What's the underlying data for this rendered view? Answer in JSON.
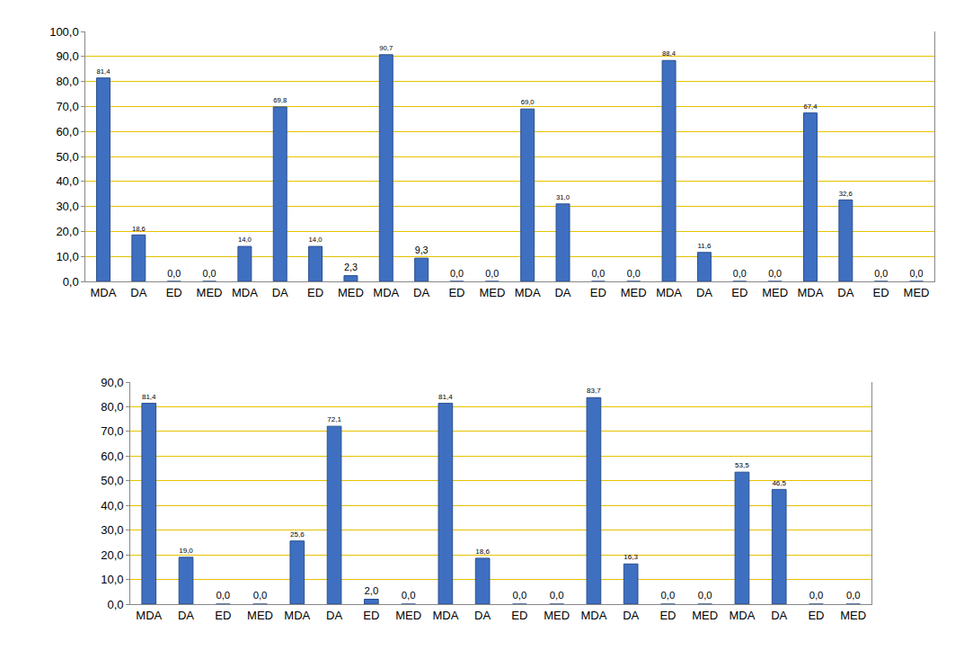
{
  "chart_data": [
    {
      "type": "bar",
      "categories": [
        "MDA",
        "DA",
        "ED",
        "MED",
        "MDA",
        "DA",
        "ED",
        "MED",
        "MDA",
        "DA",
        "ED",
        "MED",
        "MDA",
        "DA",
        "ED",
        "MED",
        "MDA",
        "DA",
        "ED",
        "MED",
        "MDA",
        "DA",
        "ED",
        "MED"
      ],
      "values": [
        81.4,
        18.6,
        0,
        0,
        14.0,
        69.8,
        14.0,
        2.3,
        90.7,
        9.3,
        0,
        0,
        69.0,
        31.0,
        0,
        0,
        88.4,
        11.6,
        0,
        0,
        67.4,
        32.6,
        0,
        0
      ],
      "value_labels": [
        "81,4",
        "18,6",
        "0,0",
        "0,0",
        "14,0",
        "69,8",
        "14,0",
        "2,3",
        "90,7",
        "9,3",
        "0,0",
        "0,0",
        "69,0",
        "31,0",
        "0,0",
        "0,0",
        "88,4",
        "11,6",
        "0,0",
        "0,0",
        "67,4",
        "32,6",
        "0,0",
        "0,0"
      ],
      "color": "#3f6fc0",
      "ylim": [
        0,
        100
      ],
      "yticks": [
        {
          "value": 0,
          "label": "0,0"
        },
        {
          "value": 10,
          "label": "10,0"
        },
        {
          "value": 20,
          "label": "20,0"
        },
        {
          "value": 30,
          "label": "30,0"
        },
        {
          "value": 40,
          "label": "40,0"
        },
        {
          "value": 50,
          "label": "50,0"
        },
        {
          "value": 60,
          "label": "60,0"
        },
        {
          "value": 70,
          "label": "70,0"
        },
        {
          "value": 80,
          "label": "80,0"
        },
        {
          "value": 90,
          "label": "90,0"
        },
        {
          "value": 100,
          "label": "100,0"
        }
      ],
      "grid": true,
      "data_labels": true
    },
    {
      "type": "bar",
      "categories": [
        "MDA",
        "DA",
        "ED",
        "MED",
        "MDA",
        "DA",
        "ED",
        "MED",
        "MDA",
        "DA",
        "ED",
        "MED",
        "MDA",
        "DA",
        "ED",
        "MED",
        "MDA",
        "DA",
        "ED",
        "MED"
      ],
      "values": [
        81.4,
        19.0,
        0,
        0,
        25.6,
        72.1,
        2.0,
        0,
        81.4,
        18.6,
        0,
        0,
        83.7,
        16.3,
        0,
        0,
        53.5,
        46.5,
        0,
        0
      ],
      "value_labels": [
        "81,4",
        "19,0",
        "0,0",
        "0,0",
        "25,6",
        "72,1",
        "2,0",
        "0,0",
        "81,4",
        "18,6",
        "0,0",
        "0,0",
        "83,7",
        "16,3",
        "0,0",
        "0,0",
        "53,5",
        "46,5",
        "0,0",
        "0,0"
      ],
      "color": "#3f6fc0",
      "ylim": [
        0,
        90
      ],
      "yticks": [
        {
          "value": 0,
          "label": "0,0"
        },
        {
          "value": 10,
          "label": "10,0"
        },
        {
          "value": 20,
          "label": "20,0"
        },
        {
          "value": 30,
          "label": "30,0"
        },
        {
          "value": 40,
          "label": "40,0"
        },
        {
          "value": 50,
          "label": "50,0"
        },
        {
          "value": 60,
          "label": "60,0"
        },
        {
          "value": 70,
          "label": "70,0"
        },
        {
          "value": 80,
          "label": "80,0"
        },
        {
          "value": 90,
          "label": "90,0"
        }
      ],
      "grid": true,
      "data_labels": true
    }
  ]
}
